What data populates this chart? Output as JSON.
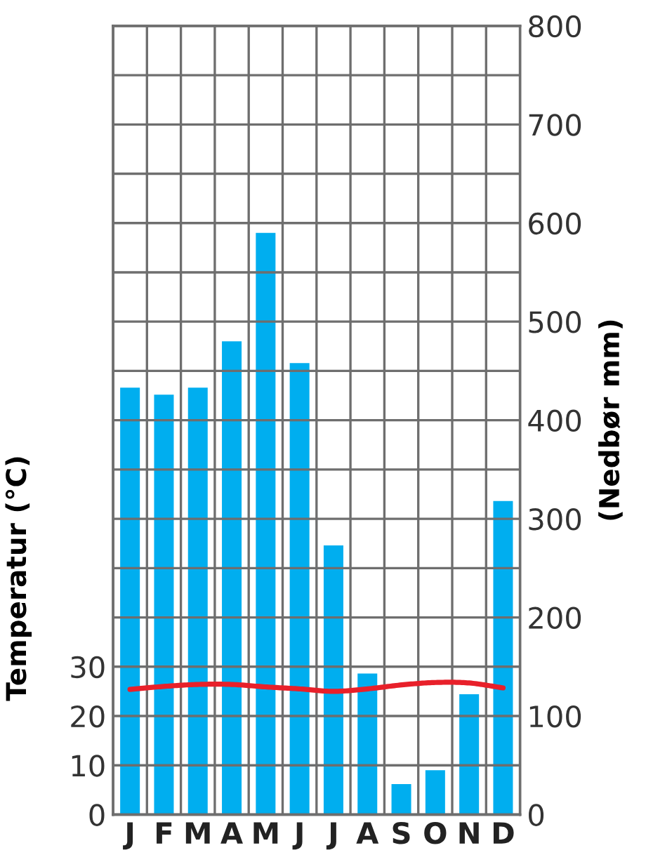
{
  "chart_data": {
    "type": "bar",
    "ylabel": "Temperatur (°C)",
    "y2label": "(Nedbør mm)",
    "categories": [
      "J",
      "F",
      "M",
      "A",
      "M",
      "J",
      "J",
      "A",
      "S",
      "O",
      "N",
      "D"
    ],
    "series": [
      {
        "axis": "y2",
        "color": "#00aeef",
        "values": [
          433,
          426,
          433,
          480,
          590,
          458,
          273,
          143,
          31,
          45,
          122,
          318
        ]
      },
      {
        "type": "line",
        "axis": "y",
        "color": "#e8202a",
        "values": [
          25.4,
          26,
          26.4,
          26.4,
          25.9,
          25.5,
          25,
          25.5,
          26.3,
          26.8,
          26.7,
          25.7
        ]
      }
    ],
    "ylim": [
      0,
      160
    ],
    "yticks": [
      0,
      10,
      20,
      30,
      {
        "value": 40,
        "label": null
      },
      {
        "value": 50,
        "label": null
      },
      {
        "value": 60,
        "label": null
      },
      {
        "value": 70,
        "label": null
      },
      {
        "value": 80,
        "label": null
      },
      {
        "value": 90,
        "label": null
      },
      {
        "value": 100,
        "label": null
      },
      {
        "value": 110,
        "label": null
      },
      {
        "value": 120,
        "label": null
      },
      {
        "value": 130,
        "label": null
      },
      {
        "value": 140,
        "label": null
      },
      {
        "value": 150,
        "label": null
      },
      {
        "value": 160,
        "label": null
      }
    ],
    "y2lim": [
      0,
      800
    ],
    "y2ticks": [
      0,
      100,
      200,
      300,
      400,
      500,
      600,
      700,
      800
    ],
    "grid": true,
    "legend": false
  }
}
